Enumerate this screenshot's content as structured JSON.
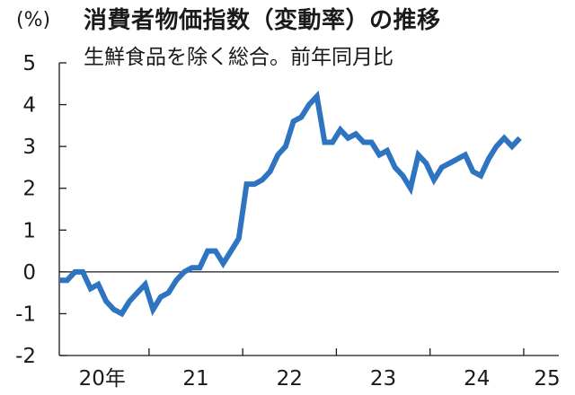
{
  "chart_data": {
    "type": "line",
    "title": "消費者物価指数（変動率）の推移",
    "subtitle": "生鮮食品を除く総合。前年同月比",
    "ylabel": "(%)",
    "xlabel": "",
    "ylim": [
      -2,
      5
    ],
    "yticks": [
      "5",
      "4",
      "3",
      "2",
      "1",
      "0",
      "-1",
      "-2"
    ],
    "xlim": [
      0,
      64
    ],
    "x_tick_labels": [
      {
        "label": "20年",
        "position": 5.5
      },
      {
        "label": "21",
        "position": 17.5
      },
      {
        "label": "22",
        "position": 29.5
      },
      {
        "label": "23",
        "position": 41.5
      },
      {
        "label": "24",
        "position": 53.5
      },
      {
        "label": "25",
        "position": 62.5
      }
    ],
    "year_boundaries": [
      11.5,
      23.5,
      35.5,
      47.5,
      59.5
    ],
    "zero_line": true,
    "grid": false,
    "legend": "none",
    "series": [
      {
        "color": "#2f74c0",
        "x": [
          0,
          1,
          2,
          3,
          4,
          5,
          6,
          7,
          8,
          9,
          10,
          11,
          12,
          13,
          14,
          15,
          16,
          17,
          18,
          19,
          20,
          21,
          22,
          23,
          24,
          25,
          26,
          27,
          28,
          29,
          30,
          31,
          32,
          33,
          34,
          35,
          36,
          37,
          38,
          39,
          40,
          41,
          42,
          43,
          44,
          45,
          46,
          47,
          48,
          49,
          50,
          51,
          52,
          53,
          54,
          55,
          56,
          57,
          58,
          59,
          60,
          61,
          62
        ],
        "values": [
          -0.2,
          -0.2,
          0.0,
          0.0,
          -0.4,
          -0.3,
          -0.7,
          -0.9,
          -1.0,
          -0.7,
          -0.5,
          -0.3,
          -0.9,
          -0.6,
          -0.5,
          -0.2,
          0.0,
          0.1,
          0.1,
          0.5,
          0.5,
          0.2,
          0.5,
          0.8,
          2.1,
          2.1,
          2.2,
          2.4,
          2.8,
          3.0,
          3.6,
          3.7,
          4.0,
          4.2,
          3.1,
          3.1,
          3.4,
          3.2,
          3.3,
          3.1,
          3.1,
          2.8,
          2.9,
          2.5,
          2.3,
          2.0,
          2.8,
          2.6,
          2.2,
          2.5,
          2.6,
          2.7,
          2.8,
          2.4,
          2.3,
          2.7,
          3.0,
          3.2,
          3.0,
          3.2,
          null,
          null,
          null
        ]
      }
    ]
  }
}
